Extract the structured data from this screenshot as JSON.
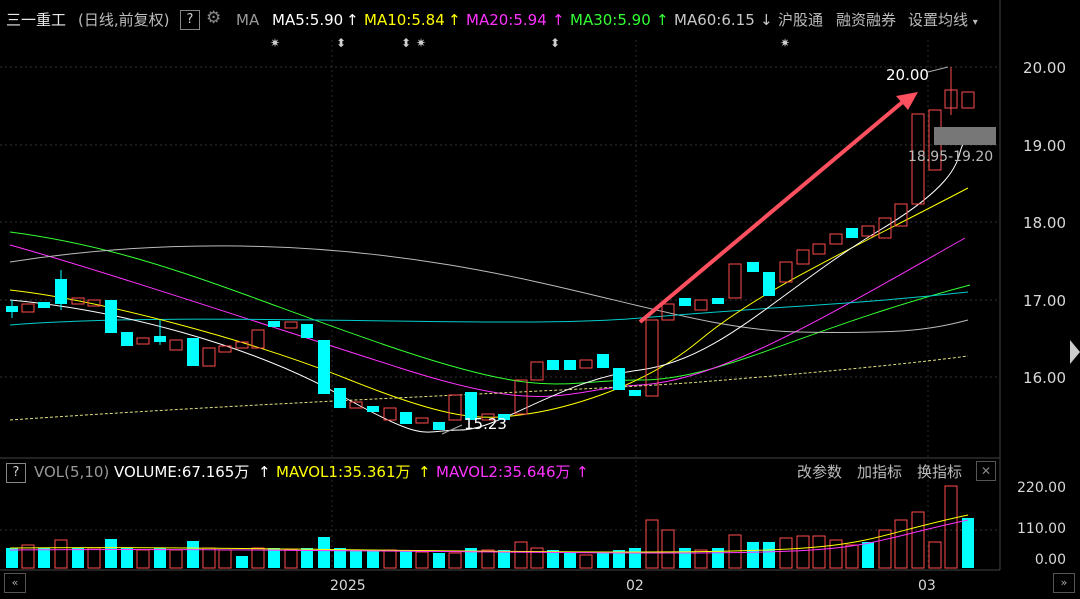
{
  "header": {
    "title": "三一重工",
    "subtitle": "(日线,前复权)",
    "help": "?",
    "ma_label": "MA",
    "ma5": "MA5:5.90",
    "ma10": "MA10:5.84",
    "ma20": "MA20:5.94",
    "ma30": "MA30:5.90",
    "ma60": "MA60:6.15",
    "hgt": "沪股通",
    "rzrq": "融资融券",
    "settings": "设置均线",
    "arrow_up": "↑",
    "arrow_down": "↓"
  },
  "colors": {
    "ma5": "#ffffff",
    "ma10": "#ffff00",
    "ma20": "#ff33ff",
    "ma30": "#33ff33",
    "ma60": "#c0c0c0",
    "up": "#ff4d4d",
    "down": "#00ffff",
    "annotation_arrow": "#ff5060"
  },
  "price_axis": [
    "20.00",
    "19.00",
    "18.00",
    "17.00",
    "16.00"
  ],
  "annotations": {
    "high": "20.00",
    "low": "15.23",
    "range": "18.95-19.20"
  },
  "volume": {
    "help": "?",
    "label": "VOL(5,10)",
    "volume": "VOLUME:67.165万",
    "mavol1": "MAVOL1:35.361万",
    "mavol2": "MAVOL2:35.646万",
    "btn_params": "改参数",
    "btn_add": "加指标",
    "btn_swap": "换指标",
    "close": "✕",
    "axis": [
      "220.00",
      "110.00",
      "0.00"
    ]
  },
  "x_axis": [
    "2025",
    "02",
    "03"
  ],
  "icons": {
    "gear": "gear-icon",
    "scroll_left": "«",
    "scroll_right": "»"
  }
}
